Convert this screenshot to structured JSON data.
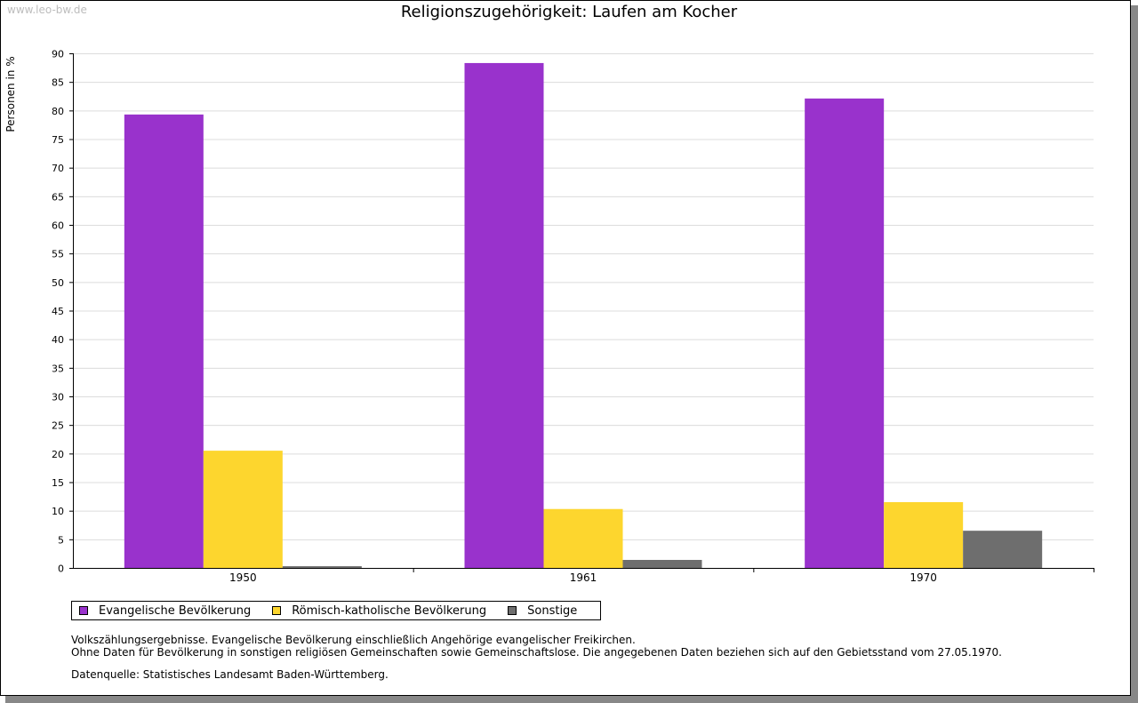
{
  "watermark": "www.leo-bw.de",
  "chart_data": {
    "type": "bar",
    "title": "Religionszugehörigkeit: Laufen am Kocher",
    "xlabel": "",
    "ylabel": "Personen in %",
    "ylim": [
      0,
      90
    ],
    "ytick_step": 5,
    "grid": true,
    "legend_position": "bottom",
    "categories": [
      "1950",
      "1961",
      "1970"
    ],
    "series": [
      {
        "name": "Evangelische Bevölkerung",
        "color": "#9932cc",
        "values": [
          79.3,
          88.3,
          82.1
        ]
      },
      {
        "name": "Römisch-katholische Bevölkerung",
        "color": "#fdd62e",
        "values": [
          20.5,
          10.3,
          11.5
        ]
      },
      {
        "name": "Sonstige",
        "color": "#6e6e6e",
        "values": [
          0.3,
          1.4,
          6.5
        ]
      }
    ]
  },
  "notes": {
    "line1": "Volkszählungsergebnisse. Evangelische Bevölkerung einschließlich Angehörige evangelischer Freikirchen.",
    "line2": "Ohne Daten für Bevölkerung in sonstigen religiösen Gemeinschaften sowie Gemeinschaftslose. Die angegebenen Daten beziehen sich auf den Gebietsstand vom 27.05.1970."
  },
  "source": "Datenquelle: Statistisches Landesamt Baden-Württemberg."
}
